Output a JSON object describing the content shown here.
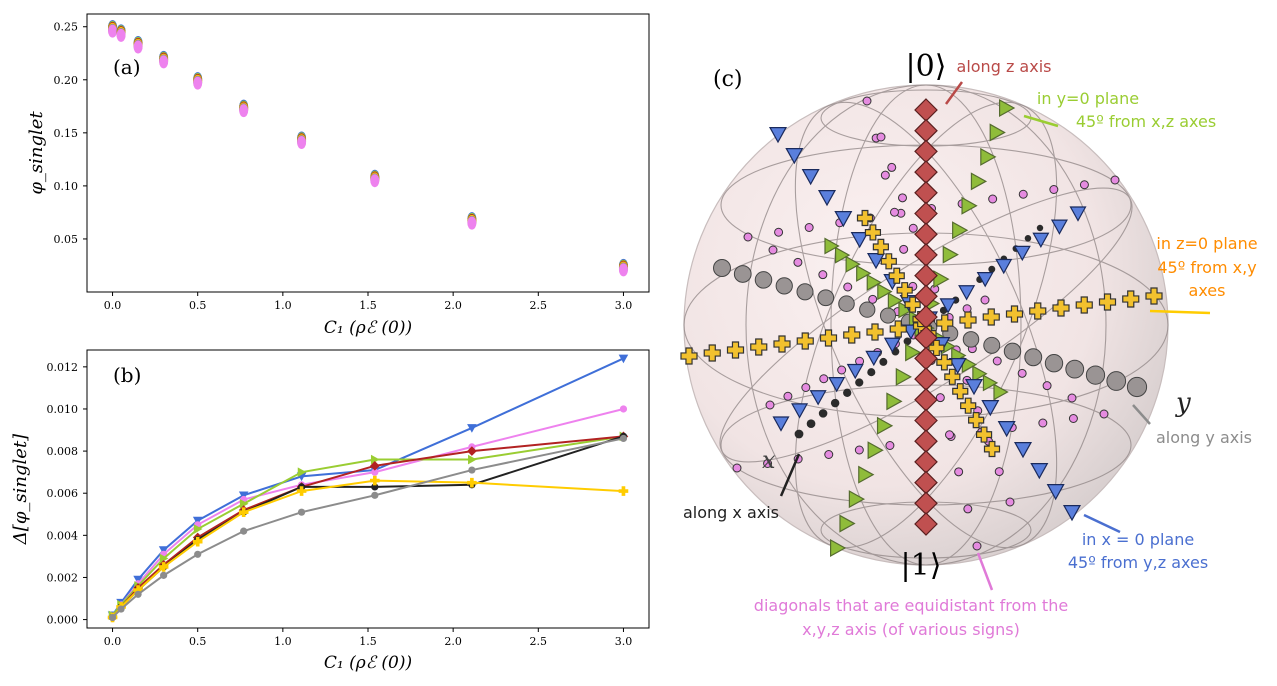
{
  "panels": {
    "a_label": "(a)",
    "b_label": "(b)",
    "c_label": "(c)"
  },
  "chart_data": [
    {
      "id": "a",
      "type": "scatter",
      "xlabel": "C₁ (ρℰ (0))",
      "ylabel": "φ_singlet",
      "xlim": [
        -0.15,
        3.15
      ],
      "ylim": [
        0.0,
        0.262
      ],
      "xticks": [
        "0.0",
        "0.5",
        "1.0",
        "1.5",
        "2.0",
        "2.5",
        "3.0"
      ],
      "yticks": [
        "0.05",
        "0.10",
        "0.15",
        "0.20",
        "0.25"
      ],
      "grid": false,
      "x": [
        0.0,
        0.05,
        0.15,
        0.3,
        0.5,
        0.77,
        1.11,
        1.54,
        2.11,
        3.0
      ],
      "values": [
        0.248,
        0.244,
        0.233,
        0.219,
        0.199,
        0.173,
        0.143,
        0.107,
        0.067,
        0.023
      ]
    },
    {
      "id": "b",
      "type": "line",
      "xlabel": "C₁ (ρℰ (0))",
      "ylabel": "Δ[φ_singlet]",
      "xlim": [
        -0.15,
        3.15
      ],
      "ylim": [
        -0.0004,
        0.0128
      ],
      "xticks": [
        "0.0",
        "0.5",
        "1.0",
        "1.5",
        "2.0",
        "2.5",
        "3.0"
      ],
      "yticks": [
        "0.000",
        "0.002",
        "0.004",
        "0.006",
        "0.008",
        "0.010",
        "0.012"
      ],
      "grid": false,
      "x": [
        0.0,
        0.05,
        0.15,
        0.3,
        0.5,
        0.77,
        1.11,
        1.54,
        2.11,
        3.0
      ],
      "series": [
        {
          "color": "#3f6fd8",
          "marker": "triangle-down",
          "values": [
            0.0002,
            0.0008,
            0.0019,
            0.0033,
            0.0047,
            0.0059,
            0.0068,
            0.0071,
            0.0091,
            0.0124
          ]
        },
        {
          "color": "#ee82ee",
          "marker": "dot",
          "values": [
            0.0001,
            0.0007,
            0.0017,
            0.0031,
            0.0045,
            0.0057,
            0.0064,
            0.007,
            0.0082,
            0.01
          ]
        },
        {
          "color": "#9acd32",
          "marker": "triangle-right",
          "values": [
            0.0002,
            0.0007,
            0.0016,
            0.0029,
            0.0043,
            0.0055,
            0.007,
            0.0076,
            0.0076,
            0.0087
          ]
        },
        {
          "color": "#b22222",
          "marker": "diamond",
          "values": [
            0.0001,
            0.0006,
            0.0015,
            0.0026,
            0.0039,
            0.0052,
            0.0063,
            0.0073,
            0.008,
            0.0087
          ]
        },
        {
          "color": "#222222",
          "marker": "dot",
          "values": [
            0.0001,
            0.0006,
            0.0014,
            0.0025,
            0.0038,
            0.0051,
            0.0063,
            0.0063,
            0.0064,
            0.0087
          ]
        },
        {
          "color": "#ffcc00",
          "marker": "plus",
          "values": [
            0.0001,
            0.0006,
            0.0014,
            0.0025,
            0.0037,
            0.0051,
            0.0061,
            0.0066,
            0.0065,
            0.0061
          ]
        },
        {
          "color": "#8c8c8c",
          "marker": "dot",
          "values": [
            0.0001,
            0.0005,
            0.0012,
            0.0021,
            0.0031,
            0.0042,
            0.0051,
            0.0059,
            0.0071,
            0.0086
          ]
        }
      ]
    }
  ],
  "sphere": {
    "pole_top": "|0⟩",
    "pole_bottom": "|1⟩",
    "axis_x": "x",
    "axis_y": "y",
    "annotations": {
      "z_axis": "along z axis",
      "y0_plane_line1": "in y=0 plane",
      "y0_plane_line2": "45º from x,z axes",
      "z0_plane_line1": "in z=0 plane",
      "z0_plane_line2": "45º from x,y",
      "z0_plane_line3": "axes",
      "y_axis": "along y axis",
      "x_axis": "along x axis",
      "x0_plane_line1": "in x = 0 plane",
      "x0_plane_line2": "45º from y,z axes",
      "diag_line1": "diagonals that are equidistant from the",
      "diag_line2": "x,y,z axis (of various signs)"
    },
    "colors": {
      "z_axis": "#b94a48",
      "y0_plane": "#9acd32",
      "z0_plane": "#ff8c00",
      "y_axis": "#8c8c8c",
      "x_axis": "#222222",
      "x0_plane": "#4a6fd0",
      "diag": "#e07ad8"
    }
  }
}
